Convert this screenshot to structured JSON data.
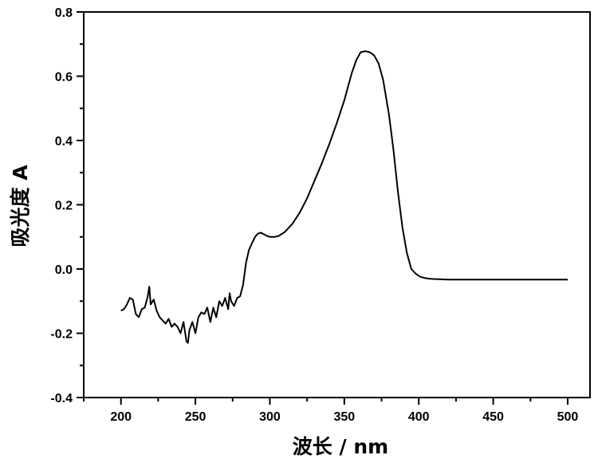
{
  "chart_data": {
    "type": "line",
    "title": "",
    "xlabel": "波长 / nm",
    "ylabel": "吸光度 A",
    "xlim": [
      175,
      515
    ],
    "ylim": [
      -0.4,
      0.8
    ],
    "x_ticks": [
      200,
      250,
      300,
      350,
      400,
      450,
      500
    ],
    "x_tick_labels": [
      "200",
      "250",
      "300",
      "350",
      "400",
      "450",
      "500"
    ],
    "y_ticks": [
      -0.4,
      -0.2,
      0.0,
      0.2,
      0.4,
      0.6,
      0.8
    ],
    "y_tick_labels": [
      "-0.4",
      "-0.2",
      "0.0",
      "0.2",
      "0.4",
      "0.6",
      "0.8"
    ],
    "grid": false,
    "line_color": "#000000",
    "series": [
      {
        "x": [
          200,
          202,
          204,
          206,
          208,
          210,
          212,
          214,
          216,
          218,
          219,
          220,
          222,
          224,
          226,
          228,
          230,
          232,
          234,
          236,
          238,
          240,
          242,
          244,
          245,
          246,
          248,
          250,
          252,
          254,
          256,
          258,
          260,
          262,
          264,
          266,
          268,
          270,
          272,
          273,
          274,
          276,
          278,
          280,
          282,
          284,
          286,
          288,
          290,
          292,
          294,
          296,
          298,
          300,
          303,
          306,
          310,
          315,
          320,
          325,
          330,
          335,
          340,
          345,
          350,
          355,
          358,
          361,
          364,
          367,
          370,
          373,
          376,
          380,
          383,
          386,
          389,
          392,
          395,
          398,
          401,
          404,
          407,
          410,
          415,
          420,
          430,
          440,
          460,
          480,
          500
        ],
        "y": [
          -0.13,
          -0.125,
          -0.11,
          -0.09,
          -0.095,
          -0.14,
          -0.15,
          -0.125,
          -0.12,
          -0.085,
          -0.055,
          -0.11,
          -0.095,
          -0.13,
          -0.15,
          -0.16,
          -0.17,
          -0.155,
          -0.18,
          -0.17,
          -0.18,
          -0.2,
          -0.165,
          -0.225,
          -0.23,
          -0.19,
          -0.165,
          -0.2,
          -0.15,
          -0.135,
          -0.14,
          -0.12,
          -0.165,
          -0.12,
          -0.15,
          -0.1,
          -0.115,
          -0.09,
          -0.125,
          -0.075,
          -0.1,
          -0.115,
          -0.09,
          -0.085,
          -0.05,
          0.02,
          0.06,
          0.08,
          0.1,
          0.11,
          0.113,
          0.108,
          0.103,
          0.1,
          0.1,
          0.103,
          0.115,
          0.14,
          0.175,
          0.22,
          0.275,
          0.33,
          0.39,
          0.455,
          0.525,
          0.61,
          0.65,
          0.675,
          0.678,
          0.675,
          0.665,
          0.64,
          0.59,
          0.48,
          0.37,
          0.24,
          0.13,
          0.05,
          0.0,
          -0.015,
          -0.024,
          -0.028,
          -0.03,
          -0.031,
          -0.032,
          -0.033,
          -0.033,
          -0.033,
          -0.033,
          -0.033,
          -0.033
        ]
      }
    ]
  }
}
